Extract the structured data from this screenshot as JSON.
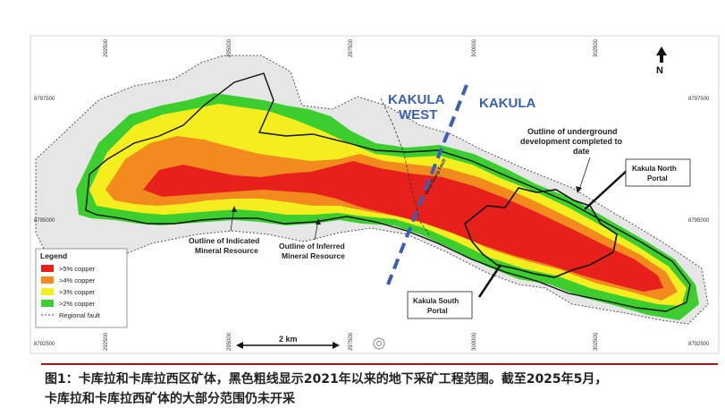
{
  "map": {
    "north_label": "N",
    "zone_labels": {
      "west": [
        "KAKULA",
        "WEST"
      ],
      "east": "KAKULA"
    },
    "fault_label": "West Scarp Fault",
    "callouts": {
      "indicated": [
        "Outline of Indicated",
        "Mineral Resource"
      ],
      "inferred": [
        "Outline of Inferred",
        "Mineral Resource"
      ],
      "underground": [
        "Outline of underground",
        "development completed to",
        "date"
      ],
      "north_portal": [
        "Kakula North",
        "Portal"
      ],
      "south_portal": [
        "Kakula South",
        "Portal"
      ]
    },
    "grid": {
      "eastings": [
        "292500",
        "295000",
        "297500",
        "300000",
        "302500"
      ],
      "northings": [
        "8797500",
        "8795000",
        "8792500"
      ]
    },
    "scale_bar": "2 km",
    "legend": {
      "title": "Legend",
      "items": [
        {
          "label": ">5% copper",
          "color": "#e8201c"
        },
        {
          "label": ">4% copper",
          "color": "#f28a1e"
        },
        {
          "label": ">3% copper",
          "color": "#f5ee1e"
        },
        {
          "label": ">2% copper",
          "color": "#3ccd2e"
        },
        {
          "label": "Regional fault",
          "color": "#444444"
        }
      ]
    },
    "colors": {
      "shade": "#e6e6e6",
      "zone_line": "#3a5fb5"
    }
  },
  "caption": {
    "line1": "图1：卡库拉和卡库拉西区矿体，黑色粗线显示2021年以来的地下采矿工程范围。截至2025年5月，",
    "line2": "卡库拉和卡库拉西矿体的大部分范围仍未开采"
  }
}
